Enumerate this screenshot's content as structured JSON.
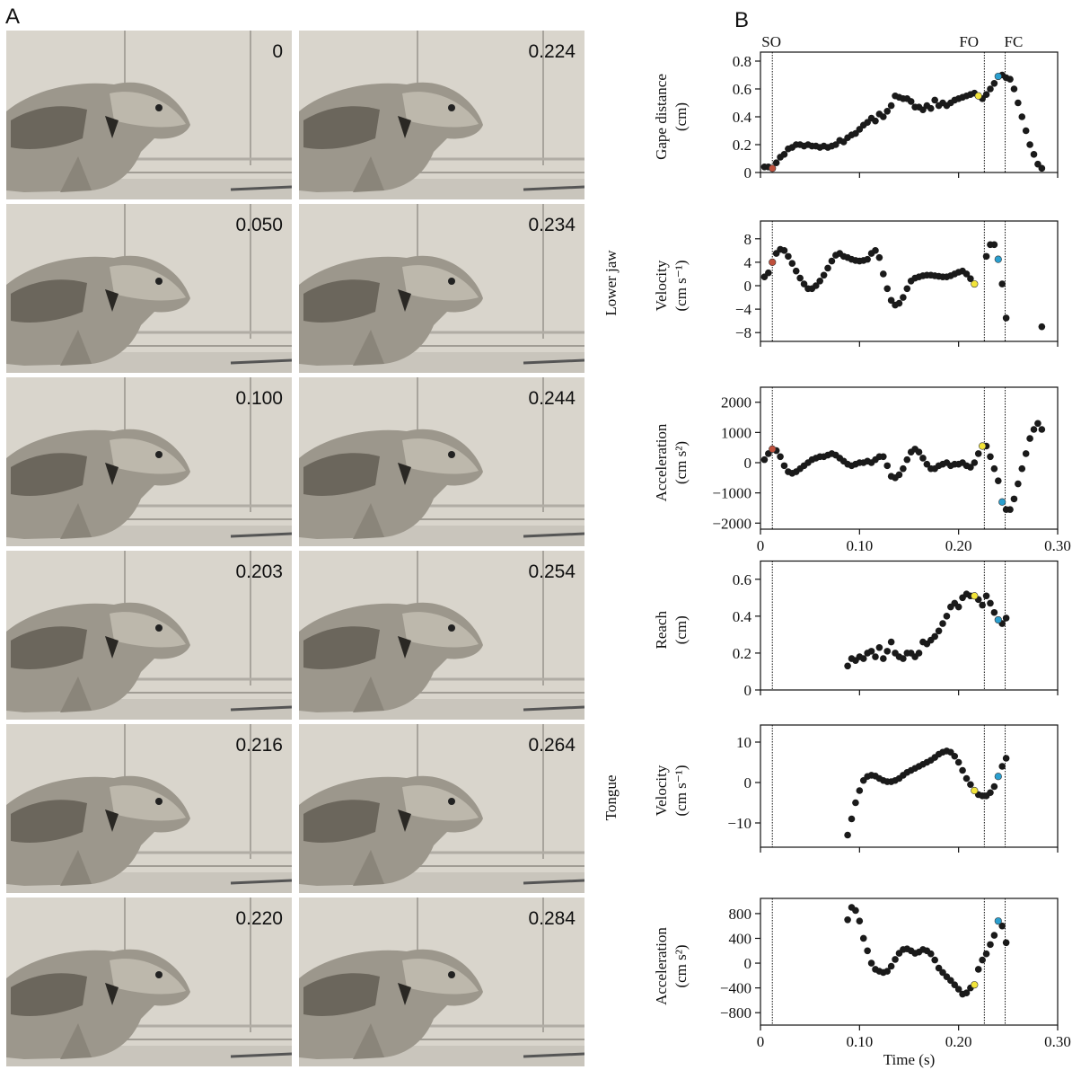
{
  "panel_a": {
    "label": "A",
    "frames": [
      "0",
      "0.050",
      "0.100",
      "0.203",
      "0.216",
      "0.220",
      "0.224",
      "0.234",
      "0.244",
      "0.254",
      "0.264",
      "0.284"
    ]
  },
  "panel_b": {
    "label": "B",
    "groups": [
      "Lower jaw",
      "Tongue"
    ],
    "events": [
      {
        "label": "SO",
        "x": 0.012
      },
      {
        "label": "FO",
        "x": 0.226
      },
      {
        "label": "FC",
        "x": 0.247
      }
    ]
  },
  "chart_data": [
    {
      "type": "scatter",
      "ylabel": [
        "Gape distance",
        "(cm)"
      ],
      "xlim": [
        0,
        0.3
      ],
      "ylim": [
        0,
        0.8
      ],
      "yticks": [
        0,
        0.2,
        0.4,
        0.6,
        0.8
      ],
      "xticks": [
        0,
        {
          "value": 0.1,
          "label": "0.10"
        },
        {
          "value": 0.2,
          "label": "0.20"
        },
        {
          "value": 0.3,
          "label": "0.30"
        }
      ],
      "xtick_labels": false,
      "series": [
        {
          "color": "#1a1a1a",
          "x": [
            0.004,
            0.008,
            0.016,
            0.02,
            0.024,
            0.028,
            0.032,
            0.036,
            0.04,
            0.044,
            0.048,
            0.052,
            0.056,
            0.06,
            0.064,
            0.068,
            0.072,
            0.076,
            0.08,
            0.084,
            0.088,
            0.092,
            0.096,
            0.1,
            0.104,
            0.108,
            0.112,
            0.116,
            0.12,
            0.124,
            0.128,
            0.132,
            0.136,
            0.14,
            0.144,
            0.148,
            0.152,
            0.156,
            0.16,
            0.164,
            0.168,
            0.172,
            0.176,
            0.18,
            0.184,
            0.188,
            0.192,
            0.196,
            0.2,
            0.204,
            0.208,
            0.212,
            0.216,
            0.224,
            0.228,
            0.232,
            0.236,
            0.244,
            0.248,
            0.252,
            0.256,
            0.26,
            0.264,
            0.268,
            0.272,
            0.276,
            0.28,
            0.284
          ],
          "values": [
            0.04,
            0.04,
            0.07,
            0.11,
            0.13,
            0.17,
            0.18,
            0.2,
            0.2,
            0.19,
            0.2,
            0.19,
            0.19,
            0.18,
            0.19,
            0.18,
            0.19,
            0.2,
            0.23,
            0.22,
            0.25,
            0.27,
            0.28,
            0.31,
            0.34,
            0.36,
            0.39,
            0.37,
            0.42,
            0.4,
            0.44,
            0.48,
            0.55,
            0.54,
            0.53,
            0.53,
            0.51,
            0.47,
            0.47,
            0.45,
            0.48,
            0.46,
            0.52,
            0.48,
            0.5,
            0.48,
            0.5,
            0.52,
            0.53,
            0.54,
            0.55,
            0.56,
            0.57,
            0.53,
            0.56,
            0.6,
            0.64,
            0.7,
            0.68,
            0.67,
            0.6,
            0.5,
            0.4,
            0.3,
            0.2,
            0.13,
            0.06,
            0.03
          ]
        },
        {
          "color": "#c0503c",
          "x": [
            0.012
          ],
          "values": [
            0.03
          ]
        },
        {
          "color": "#f2e43a",
          "x": [
            0.22
          ],
          "values": [
            0.55
          ]
        },
        {
          "color": "#2a9fcf",
          "x": [
            0.24
          ],
          "values": [
            0.69
          ]
        }
      ]
    },
    {
      "type": "scatter",
      "ylabel": [
        "Velocity",
        "(cm s⁻¹)"
      ],
      "xlim": [
        0,
        0.3
      ],
      "ylim": [
        -9.5,
        9.5
      ],
      "yticks": [
        {
          "value": -8,
          "label": "−8"
        },
        {
          "value": -4,
          "label": "−4"
        },
        0,
        4,
        8
      ],
      "xticks": [
        0,
        {
          "value": 0.1,
          "label": "0.10"
        },
        {
          "value": 0.2,
          "label": "0.20"
        },
        {
          "value": 0.3,
          "label": "0.30"
        }
      ],
      "xtick_labels": false,
      "series": [
        {
          "color": "#1a1a1a",
          "x": [
            0.004,
            0.008,
            0.016,
            0.02,
            0.024,
            0.028,
            0.032,
            0.036,
            0.04,
            0.044,
            0.048,
            0.052,
            0.056,
            0.06,
            0.064,
            0.068,
            0.072,
            0.076,
            0.08,
            0.084,
            0.088,
            0.092,
            0.096,
            0.1,
            0.104,
            0.108,
            0.112,
            0.116,
            0.12,
            0.124,
            0.128,
            0.132,
            0.136,
            0.14,
            0.144,
            0.148,
            0.152,
            0.156,
            0.16,
            0.164,
            0.168,
            0.172,
            0.176,
            0.18,
            0.184,
            0.188,
            0.192,
            0.196,
            0.2,
            0.204,
            0.208,
            0.212,
            0.228,
            0.232,
            0.236,
            0.244,
            0.248,
            0.284
          ],
          "values": [
            1.5,
            2.2,
            5.5,
            6.2,
            6,
            5,
            3.8,
            2.5,
            1.3,
            0.3,
            -0.5,
            -0.5,
            0,
            0.8,
            1.8,
            3,
            4.2,
            5.2,
            5.5,
            5,
            4.8,
            4.5,
            4.3,
            4.2,
            4.3,
            4.5,
            5.5,
            6,
            4.8,
            2,
            -0.5,
            -2.5,
            -3.3,
            -3,
            -2,
            -0.5,
            0.8,
            1.3,
            1.5,
            1.7,
            1.8,
            1.8,
            1.7,
            1.6,
            1.5,
            1.5,
            1.7,
            2,
            2.3,
            2.5,
            2,
            1.2,
            5,
            7,
            7,
            0.3,
            -5.5,
            -7
          ]
        },
        {
          "color": "#c0503c",
          "x": [
            0.012
          ],
          "values": [
            4
          ]
        },
        {
          "color": "#f2e43a",
          "x": [
            0.216
          ],
          "values": [
            0.3
          ]
        },
        {
          "color": "#2a9fcf",
          "x": [
            0.24
          ],
          "values": [
            4.5
          ]
        }
      ]
    },
    {
      "type": "scatter",
      "ylabel": [
        "Acceleration",
        "(cm s²)"
      ],
      "xlim": [
        0,
        0.3
      ],
      "ylim": [
        -2200,
        2200
      ],
      "yticks": [
        {
          "value": -2000,
          "label": "−2000"
        },
        {
          "value": -1000,
          "label": "−1000"
        },
        0,
        1000,
        2000
      ],
      "xticks": [
        0,
        {
          "value": 0.1,
          "label": "0.10"
        },
        {
          "value": 0.2,
          "label": "0.20"
        },
        {
          "value": 0.3,
          "label": "0.30"
        }
      ],
      "xtick_labels": true,
      "series": [
        {
          "color": "#1a1a1a",
          "x": [
            0.004,
            0.008,
            0.016,
            0.02,
            0.024,
            0.028,
            0.032,
            0.036,
            0.04,
            0.044,
            0.048,
            0.052,
            0.056,
            0.06,
            0.064,
            0.068,
            0.072,
            0.076,
            0.08,
            0.084,
            0.088,
            0.092,
            0.096,
            0.1,
            0.104,
            0.108,
            0.112,
            0.116,
            0.12,
            0.124,
            0.128,
            0.132,
            0.136,
            0.14,
            0.144,
            0.148,
            0.152,
            0.156,
            0.16,
            0.164,
            0.168,
            0.172,
            0.176,
            0.18,
            0.184,
            0.188,
            0.192,
            0.196,
            0.2,
            0.204,
            0.208,
            0.212,
            0.216,
            0.22,
            0.228,
            0.232,
            0.236,
            0.24,
            0.248,
            0.252,
            0.256,
            0.26,
            0.264,
            0.268,
            0.272,
            0.276,
            0.28,
            0.284
          ],
          "values": [
            100,
            300,
            400,
            200,
            -100,
            -300,
            -350,
            -300,
            -200,
            -100,
            0,
            100,
            150,
            200,
            200,
            250,
            300,
            250,
            150,
            50,
            -50,
            -100,
            -50,
            0,
            0,
            50,
            0,
            100,
            200,
            200,
            -100,
            -450,
            -500,
            -400,
            -200,
            100,
            350,
            450,
            350,
            150,
            -50,
            -200,
            -200,
            -100,
            -50,
            0,
            -100,
            -50,
            -50,
            0,
            -100,
            -150,
            0,
            300,
            550,
            200,
            -200,
            -600,
            -1550,
            -1550,
            -1200,
            -700,
            -200,
            300,
            800,
            1100,
            1300,
            1100
          ]
        },
        {
          "color": "#c0503c",
          "x": [
            0.012
          ],
          "values": [
            450
          ]
        },
        {
          "color": "#f2e43a",
          "x": [
            0.224
          ],
          "values": [
            550
          ]
        },
        {
          "color": "#2a9fcf",
          "x": [
            0.244
          ],
          "values": [
            -1300
          ]
        }
      ]
    },
    {
      "type": "scatter",
      "ylabel": [
        "Reach",
        "(cm)"
      ],
      "xlim": [
        0,
        0.3
      ],
      "ylim": [
        0,
        0.65
      ],
      "yticks": [
        0,
        0.2,
        0.4,
        0.6
      ],
      "xticks": [
        0,
        {
          "value": 0.1,
          "label": "0.10"
        },
        {
          "value": 0.2,
          "label": "0.20"
        },
        {
          "value": 0.3,
          "label": "0.30"
        }
      ],
      "xtick_labels": false,
      "series": [
        {
          "color": "#1a1a1a",
          "x": [
            0.088,
            0.092,
            0.096,
            0.1,
            0.104,
            0.108,
            0.112,
            0.116,
            0.12,
            0.124,
            0.128,
            0.132,
            0.136,
            0.14,
            0.144,
            0.148,
            0.152,
            0.156,
            0.16,
            0.164,
            0.168,
            0.172,
            0.176,
            0.18,
            0.184,
            0.188,
            0.192,
            0.196,
            0.2,
            0.204,
            0.208,
            0.212,
            0.22,
            0.224,
            0.228,
            0.232,
            0.236,
            0.244,
            0.248
          ],
          "values": [
            0.13,
            0.17,
            0.16,
            0.18,
            0.17,
            0.2,
            0.21,
            0.18,
            0.23,
            0.17,
            0.21,
            0.26,
            0.2,
            0.18,
            0.17,
            0.2,
            0.2,
            0.18,
            0.2,
            0.26,
            0.25,
            0.27,
            0.29,
            0.32,
            0.36,
            0.4,
            0.45,
            0.47,
            0.45,
            0.5,
            0.52,
            0.51,
            0.49,
            0.46,
            0.51,
            0.47,
            0.42,
            0.36,
            0.39
          ]
        },
        {
          "color": "#f2e43a",
          "x": [
            0.216
          ],
          "values": [
            0.51
          ]
        },
        {
          "color": "#2a9fcf",
          "x": [
            0.24
          ],
          "values": [
            0.38
          ]
        }
      ]
    },
    {
      "type": "scatter",
      "ylabel": [
        "Velocity",
        "(cm s⁻¹)"
      ],
      "xlim": [
        0,
        0.3
      ],
      "ylim": [
        -16,
        12
      ],
      "yticks": [
        {
          "value": -10,
          "label": "−10"
        },
        0,
        10
      ],
      "xticks": [
        0,
        {
          "value": 0.1,
          "label": "0.10"
        },
        {
          "value": 0.2,
          "label": "0.20"
        },
        {
          "value": 0.3,
          "label": "0.30"
        }
      ],
      "xtick_labels": false,
      "series": [
        {
          "color": "#1a1a1a",
          "x": [
            0.088,
            0.092,
            0.096,
            0.1,
            0.104,
            0.108,
            0.112,
            0.116,
            0.12,
            0.124,
            0.128,
            0.132,
            0.136,
            0.14,
            0.144,
            0.148,
            0.152,
            0.156,
            0.16,
            0.164,
            0.168,
            0.172,
            0.176,
            0.18,
            0.184,
            0.188,
            0.192,
            0.196,
            0.2,
            0.204,
            0.208,
            0.212,
            0.22,
            0.224,
            0.228,
            0.232,
            0.236,
            0.244,
            0.248
          ],
          "values": [
            -13,
            -9,
            -5,
            -2,
            0.5,
            1.5,
            1.8,
            1.6,
            1,
            0.5,
            0.2,
            0.2,
            0.5,
            1,
            1.8,
            2.5,
            3,
            3.5,
            4,
            4.5,
            5,
            5.5,
            6.2,
            7,
            7.5,
            7.8,
            7.5,
            6.5,
            5,
            3,
            1,
            -0.5,
            -3,
            -3.3,
            -3.3,
            -2.5,
            -1,
            4,
            6
          ]
        },
        {
          "color": "#f2e43a",
          "x": [
            0.216
          ],
          "values": [
            -2
          ]
        },
        {
          "color": "#2a9fcf",
          "x": [
            0.24
          ],
          "values": [
            1.5
          ]
        }
      ]
    },
    {
      "type": "scatter",
      "ylabel": [
        "Acceleration",
        "(cm s²)"
      ],
      "xlabel": "Time (s)",
      "xlim": [
        0,
        0.3
      ],
      "ylim": [
        -1000,
        900
      ],
      "yticks": [
        {
          "value": -800,
          "label": "−800"
        },
        {
          "value": -400,
          "label": "−400"
        },
        0,
        400,
        800
      ],
      "xticks": [
        0,
        {
          "value": 0.1,
          "label": "0.10"
        },
        {
          "value": 0.2,
          "label": "0.20"
        },
        {
          "value": 0.3,
          "label": "0.30"
        }
      ],
      "xtick_labels": true,
      "series": [
        {
          "color": "#1a1a1a",
          "x": [
            0.088,
            0.092,
            0.096,
            0.1,
            0.104,
            0.108,
            0.112,
            0.116,
            0.12,
            0.124,
            0.128,
            0.132,
            0.136,
            0.14,
            0.144,
            0.148,
            0.152,
            0.156,
            0.16,
            0.164,
            0.168,
            0.172,
            0.176,
            0.18,
            0.184,
            0.188,
            0.192,
            0.196,
            0.2,
            0.204,
            0.208,
            0.212,
            0.22,
            0.224,
            0.228,
            0.232,
            0.236,
            0.244,
            0.248
          ],
          "values": [
            700,
            900,
            850,
            680,
            400,
            200,
            0,
            -100,
            -130,
            -150,
            -130,
            -50,
            60,
            160,
            220,
            230,
            200,
            160,
            180,
            220,
            200,
            150,
            50,
            -80,
            -150,
            -220,
            -280,
            -350,
            -420,
            -500,
            -480,
            -400,
            -100,
            50,
            150,
            300,
            450,
            600,
            330
          ]
        },
        {
          "color": "#f2e43a",
          "x": [
            0.216
          ],
          "values": [
            -350
          ]
        },
        {
          "color": "#2a9fcf",
          "x": [
            0.24
          ],
          "values": [
            680
          ]
        }
      ]
    }
  ]
}
